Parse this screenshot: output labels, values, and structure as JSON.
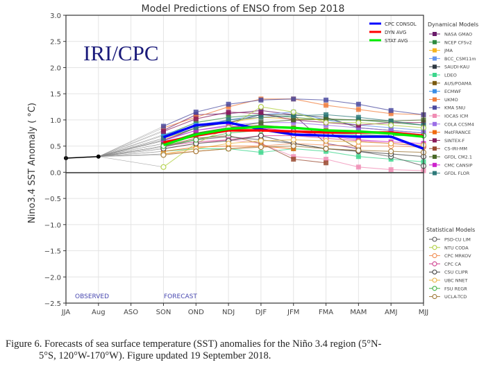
{
  "chart_data": {
    "type": "line",
    "title": "Model Predictions of ENSO from Sep 2018",
    "watermark": "IRI/CPC",
    "xlabel": "",
    "ylabel": "Nino3.4 SST Anomaly ( °C)",
    "ylim": [
      -2.5,
      3.0
    ],
    "yticks": [
      "3.0",
      "2.5",
      "2.0",
      "1.5",
      "1.0",
      "0.5",
      "0.0",
      "−0.5",
      "−1.0",
      "−1.5",
      "−2.0",
      "−2.5"
    ],
    "ytick_values": [
      3.0,
      2.5,
      2.0,
      1.5,
      1.0,
      0.5,
      0.0,
      -0.5,
      -1.0,
      -1.5,
      -2.0,
      -2.5
    ],
    "categories": [
      "JJA",
      "Aug",
      "ASO",
      "SON",
      "OND",
      "NDJ",
      "DJF",
      "JFM",
      "FMA",
      "MAM",
      "AMJ",
      "MJJ"
    ],
    "grid": true,
    "annotations": {
      "observed": "OBSERVED",
      "forecast": "FORECAST"
    },
    "observed": {
      "values": [
        0.27,
        0.3
      ],
      "color": "#000000"
    },
    "averages": [
      {
        "name": "CPC CONSOL",
        "color": "#0000ff",
        "values": [
          0.67,
          0.9,
          0.95,
          0.82,
          0.72,
          0.7,
          0.68,
          0.68,
          0.45
        ]
      },
      {
        "name": "DYN AVG",
        "color": "#ff0000",
        "values": [
          0.57,
          0.7,
          0.8,
          0.8,
          0.78,
          0.76,
          0.76,
          0.76,
          0.7
        ]
      },
      {
        "name": "STAT AVG",
        "color": "#00ee00",
        "values": [
          0.52,
          0.72,
          0.83,
          0.87,
          0.85,
          0.8,
          0.78,
          0.74,
          0.68
        ]
      }
    ],
    "dynamical_legend_title": "Dynamical Models",
    "dynamical_models": [
      {
        "name": "NASA GMAO",
        "color": "#6a1b6a",
        "values": [
          0.8,
          1.1,
          1.12,
          1.18,
          1.1,
          0.55,
          0.45
        ]
      },
      {
        "name": "NCEP CFSv2",
        "color": "#2e8b3e",
        "values": [
          0.7,
          0.95,
          1.05,
          1.1,
          1.05,
          1.0,
          1.0,
          0.95,
          0.9
        ]
      },
      {
        "name": "JMA",
        "color": "#f5b41e",
        "values": [
          0.62,
          0.85,
          0.95,
          1.05,
          1.02,
          1.0
        ]
      },
      {
        "name": "BCC_CSM11m",
        "color": "#6495ed",
        "values": [
          0.65,
          0.9,
          1.0,
          1.1,
          1.15,
          1.0,
          0.9,
          0.85,
          0.8
        ]
      },
      {
        "name": "SAUDI-KAU",
        "color": "#2f3a44",
        "values": [
          0.6,
          0.85,
          0.95,
          1.1,
          1.1,
          1.05,
          0.85,
          0.8,
          0.75
        ]
      },
      {
        "name": "LDEO",
        "color": "#3cd68c",
        "values": [
          0.4,
          0.45,
          0.45,
          0.38,
          0.45,
          0.4,
          0.3,
          0.25,
          0.2
        ]
      },
      {
        "name": "AUS/POAMA",
        "color": "#7a5a10",
        "values": [
          0.55,
          0.75,
          0.85,
          0.9,
          0.85,
          0.8,
          0.45
        ]
      },
      {
        "name": "ECMWF",
        "color": "#3a8ee6",
        "values": [
          0.72,
          0.9,
          0.95,
          0.82,
          0.72,
          0.7,
          0.65
        ]
      },
      {
        "name": "UKMO",
        "color": "#f07d3c",
        "values": [
          0.85,
          1.05,
          1.25,
          1.4,
          1.4,
          1.28,
          1.2,
          1.12,
          1.1
        ]
      },
      {
        "name": "KMA SNU",
        "color": "#4b4ba0",
        "values": [
          0.88,
          1.15,
          1.3,
          1.38,
          1.4,
          1.38,
          1.3,
          1.18,
          1.1
        ]
      },
      {
        "name": "IOCAS ICM",
        "color": "#f08cb4",
        "values": [
          0.45,
          0.55,
          0.62,
          0.55,
          0.3,
          0.25,
          0.1,
          0.05,
          0.03
        ]
      },
      {
        "name": "COLA CCSM4",
        "color": "#9b6ee6",
        "values": [
          0.6,
          0.8,
          0.9,
          0.95,
          0.95,
          0.9,
          0.85,
          0.8,
          0.75
        ]
      },
      {
        "name": "MetFRANCE",
        "color": "#f06a10",
        "values": [
          0.4,
          0.48,
          0.5,
          0.5,
          0.45
        ]
      },
      {
        "name": "SINTEX-F",
        "color": "#8b1a5a",
        "values": [
          0.78,
          1.02,
          1.15,
          1.12,
          1.0,
          0.95,
          0.9,
          0.95,
          0.95
        ]
      },
      {
        "name": "CS-IRI-MM",
        "color": "#9a4a30",
        "values": [
          0.5,
          0.65,
          0.7,
          0.55,
          0.25,
          0.18
        ]
      },
      {
        "name": "GFDL CM2.1",
        "color": "#4a6a28",
        "values": [
          0.55,
          0.75,
          0.85,
          0.95,
          1.0,
          1.02,
          1.0,
          0.98,
          1.0
        ]
      },
      {
        "name": "CMC CANSIP",
        "color": "#cc22cc",
        "values": [
          0.62,
          0.8,
          0.88,
          0.85,
          0.78,
          0.7,
          0.62,
          0.58,
          0.55
        ]
      },
      {
        "name": "GFDL FLOR",
        "color": "#2e7a7a",
        "values": [
          0.65,
          0.85,
          1.0,
          1.05,
          1.08,
          1.1,
          1.05,
          0.98,
          0.9
        ]
      }
    ],
    "statistical_legend_title": "Statistical Models",
    "statistical_models": [
      {
        "name": "PSD-CU LIM",
        "color": "#555555",
        "values": [
          0.48,
          0.62,
          0.68,
          0.62,
          0.55,
          0.45,
          0.4,
          0.3,
          0.12
        ]
      },
      {
        "name": "NTU CODA",
        "color": "#b0d040",
        "values": [
          0.1,
          0.55,
          0.85,
          1.25,
          1.15,
          0.95,
          0.95,
          0.9,
          0.85
        ]
      },
      {
        "name": "CPC MRKOV",
        "color": "#f08c50",
        "values": [
          0.35,
          0.4,
          0.45,
          0.5,
          0.55,
          0.52,
          0.5,
          0.5,
          0.48
        ]
      },
      {
        "name": "CPC CA",
        "color": "#d04090",
        "values": [
          0.5,
          0.58,
          0.62,
          0.7,
          0.7,
          0.65,
          0.6,
          0.55,
          0.5
        ]
      },
      {
        "name": "CSU CLIPR",
        "color": "#444444",
        "values": [
          0.45,
          0.55,
          0.6,
          0.7,
          0.55,
          0.45,
          0.4,
          0.35,
          0.3
        ]
      },
      {
        "name": "UBC NNET",
        "color": "#e8b040",
        "values": [
          0.35,
          0.45,
          0.55,
          0.6,
          0.62,
          0.6,
          0.58,
          0.55,
          0.52
        ]
      },
      {
        "name": "FSU REGR",
        "color": "#40b040",
        "values": [
          0.5,
          0.62,
          0.75,
          0.8,
          0.78,
          0.75,
          0.72,
          0.7,
          0.7
        ]
      },
      {
        "name": "UCLA-TCD",
        "color": "#a07838",
        "values": [
          0.33,
          0.4,
          0.45,
          0.48,
          0.5,
          0.45,
          0.42,
          0.4,
          0.38
        ]
      }
    ]
  },
  "caption": {
    "line1": "Figure 6. Forecasts of sea surface temperature (SST) anomalies for the Niño 3.4 region (5°N-",
    "line2": "5°S, 120°W-170°W). Figure updated 19 September 2018."
  }
}
